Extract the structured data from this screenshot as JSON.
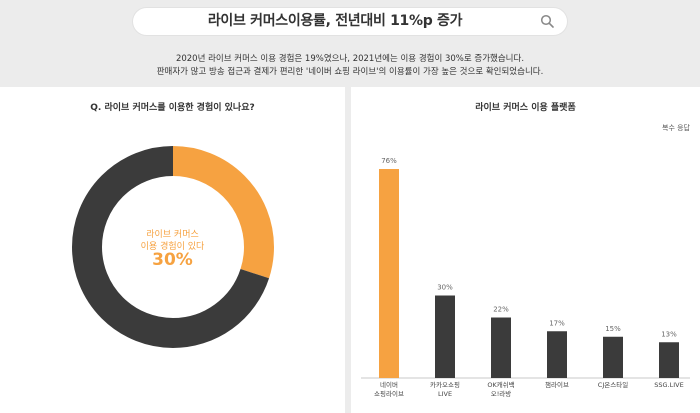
{
  "search": {
    "query": "라이브 커머스이용률, 전년대비 11%p 증가",
    "icon": "search-icon"
  },
  "summary": {
    "line1": "2020년 라이브 커머스 이용 경험은 19%였으나, 2021년에는 이용 경험이 30%로 증가했습니다.",
    "line2": "판매자가 많고 방송 접근과 결제가 편리한 '네이버 쇼핑 라이브'의 이용률이 가장 높은 것으로 확인되었습니다."
  },
  "colors": {
    "accent": "#f6a241",
    "dark": "#3b3b3b",
    "background": "#ececec"
  },
  "chart_data": [
    {
      "type": "pie",
      "title": "Q. 라이브 커머스를 이용한 경험이 있나요?",
      "center_label_line1": "라이브 커머스",
      "center_label_line2": "이용 경험이 있다",
      "center_value": "30%",
      "slices": [
        {
          "label": "이용 경험이 있다",
          "value": 30,
          "color": "#f6a241"
        },
        {
          "label": "",
          "value": 70,
          "color": "#3b3b3b"
        }
      ]
    },
    {
      "type": "bar",
      "title": "라이브 커머스 이용 플랫폼",
      "note": "복수 응답",
      "categories": [
        [
          "네이버",
          "쇼핑라이브"
        ],
        [
          "카카오쇼핑",
          "LIVE"
        ],
        [
          "OK캐쉬백",
          "오!라방"
        ],
        [
          "챔라이브"
        ],
        [
          "CJ온스타일"
        ],
        [
          "SSG.LIVE"
        ]
      ],
      "values": [
        76,
        30,
        22,
        17,
        15,
        13
      ],
      "value_labels": [
        "76%",
        "30%",
        "22%",
        "17%",
        "15%",
        "13%"
      ],
      "highlight_index": 0,
      "ylim": [
        0,
        80
      ]
    }
  ]
}
